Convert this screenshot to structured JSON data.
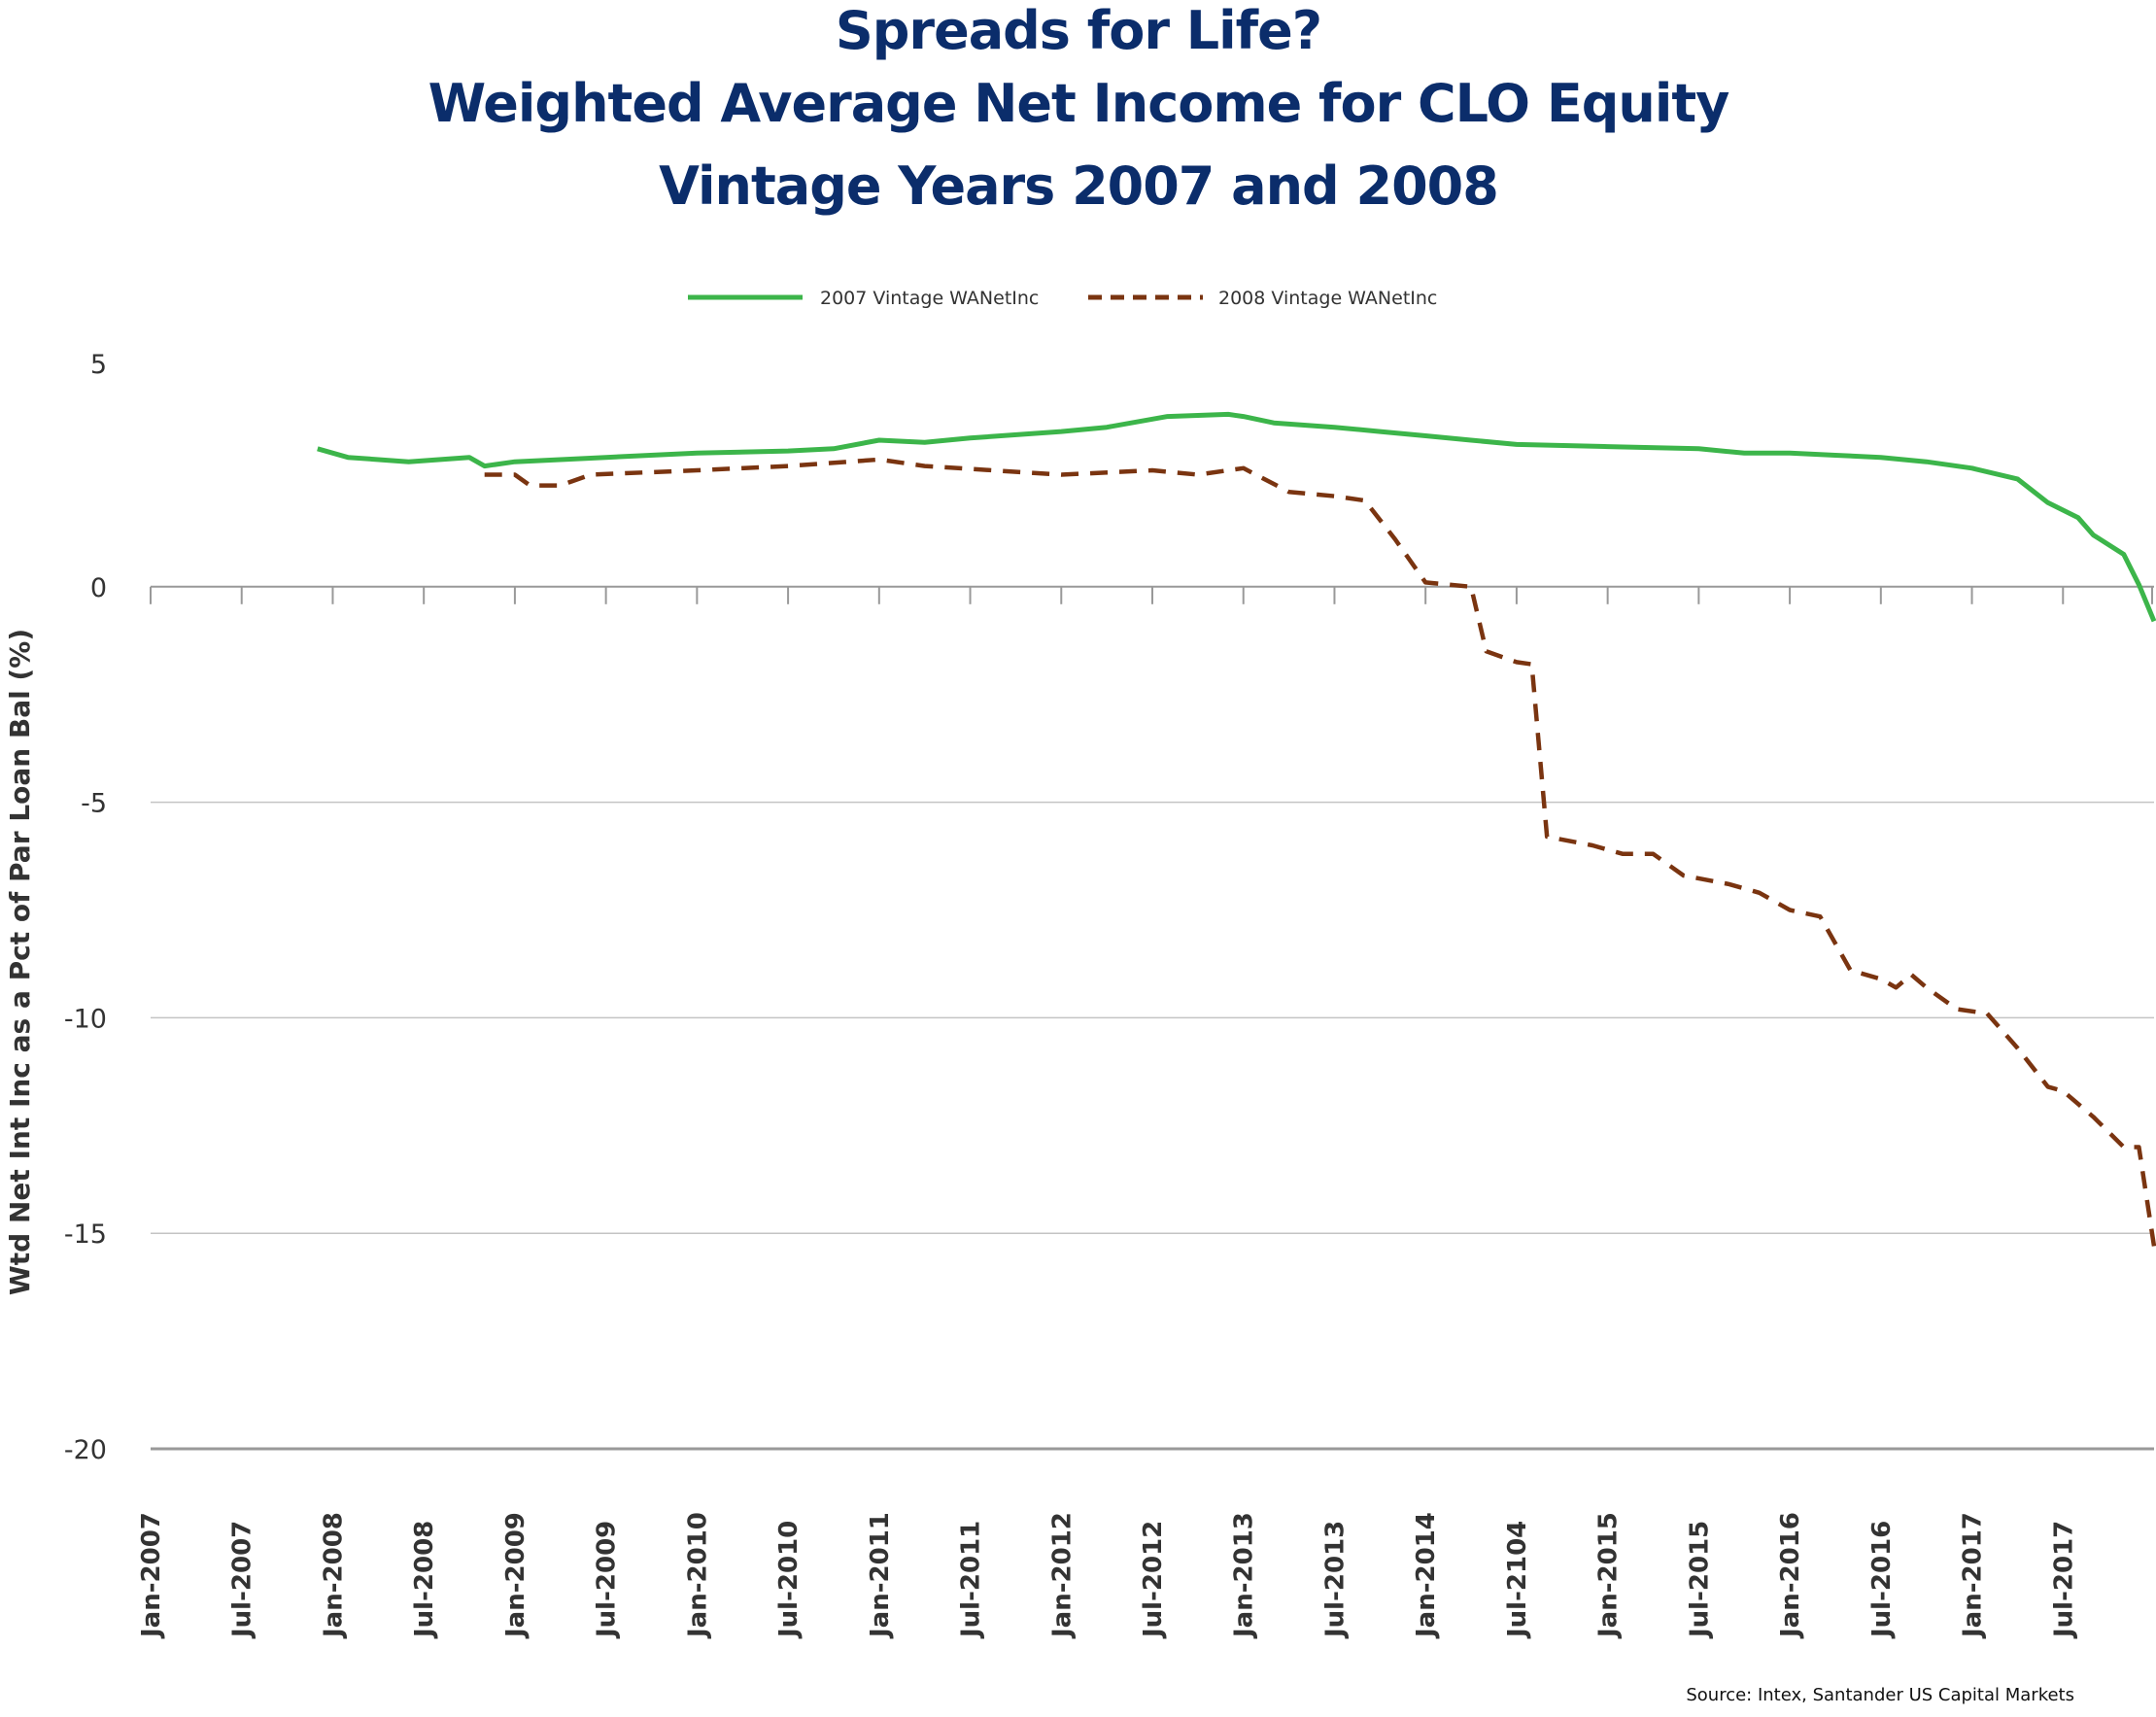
{
  "chart_data": {
    "type": "line",
    "title": [
      "Spreads for Life?",
      "Weighted Average Net Income for CLO Equity",
      "Vintage Years 2007 and 2008"
    ],
    "ylabel": "Wtd Net Int Inc as a Pct of Par Loan Bal (%)",
    "xlabel": "",
    "ylim": [
      -20,
      5
    ],
    "yticks": [
      5,
      0,
      -5,
      -10,
      -15,
      -20
    ],
    "xlim": [
      "2007-01",
      "2018-01"
    ],
    "xtick_labels": [
      "Jan-2007",
      "Jul-2007",
      "Jan-2008",
      "Jul-2008",
      "Jan-2009",
      "Jul-2009",
      "Jan-2010",
      "Jul-2010",
      "Jan-2011",
      "Jul-2011",
      "Jan-2012",
      "Jul-2012",
      "Jan-2013",
      "Jul-2013",
      "Jan-2014",
      "Jul-2104",
      "Jan-2015",
      "Jul-2015",
      "Jan-2016",
      "Jul-2016",
      "Jan-2017",
      "Jul-2017"
    ],
    "grid": "horizontal",
    "legend_position": "top",
    "source": "Source: Intex, Santander US Capital Markets",
    "series": [
      {
        "name": "2007 Vintage WANetInc",
        "color": "#3cb54a",
        "style": "solid",
        "points": [
          [
            "2007-12",
            3.2
          ],
          [
            "2008-02",
            3.0
          ],
          [
            "2008-06",
            2.9
          ],
          [
            "2008-10",
            3.0
          ],
          [
            "2008-11",
            2.8
          ],
          [
            "2009-01",
            2.9
          ],
          [
            "2009-07",
            3.0
          ],
          [
            "2010-01",
            3.1
          ],
          [
            "2010-07",
            3.15
          ],
          [
            "2010-10",
            3.2
          ],
          [
            "2011-01",
            3.4
          ],
          [
            "2011-04",
            3.35
          ],
          [
            "2011-07",
            3.45
          ],
          [
            "2012-01",
            3.6
          ],
          [
            "2012-04",
            3.7
          ],
          [
            "2012-08",
            3.95
          ],
          [
            "2012-12",
            4.0
          ],
          [
            "2013-01",
            3.95
          ],
          [
            "2013-03",
            3.8
          ],
          [
            "2013-07",
            3.7
          ],
          [
            "2013-10",
            3.6
          ],
          [
            "2014-01",
            3.5
          ],
          [
            "2014-04",
            3.4
          ],
          [
            "2014-07",
            3.3
          ],
          [
            "2015-01",
            3.25
          ],
          [
            "2015-07",
            3.2
          ],
          [
            "2015-10",
            3.1
          ],
          [
            "2016-01",
            3.1
          ],
          [
            "2016-04",
            3.05
          ],
          [
            "2016-07",
            3.0
          ],
          [
            "2016-10",
            2.9
          ],
          [
            "2017-01",
            2.75
          ],
          [
            "2017-04",
            2.5
          ],
          [
            "2017-06",
            1.95
          ],
          [
            "2017-08",
            1.6
          ],
          [
            "2017-09",
            1.2
          ],
          [
            "2017-11",
            0.75
          ],
          [
            "2017-12",
            0.05
          ],
          [
            "2018-01",
            -0.8
          ]
        ]
      },
      {
        "name": "2008 Vintage WANetInc",
        "color": "#7a3410",
        "style": "dashed",
        "points": [
          [
            "2008-11",
            2.6
          ],
          [
            "2009-01",
            2.6
          ],
          [
            "2009-02",
            2.35
          ],
          [
            "2009-04",
            2.35
          ],
          [
            "2009-06",
            2.6
          ],
          [
            "2010-01",
            2.7
          ],
          [
            "2010-07",
            2.8
          ],
          [
            "2011-01",
            2.95
          ],
          [
            "2011-04",
            2.8
          ],
          [
            "2012-01",
            2.6
          ],
          [
            "2012-07",
            2.7
          ],
          [
            "2012-10",
            2.6
          ],
          [
            "2013-01",
            2.75
          ],
          [
            "2013-04",
            2.2
          ],
          [
            "2013-07",
            2.1
          ],
          [
            "2013-09",
            2.0
          ],
          [
            "2013-11",
            1.1
          ],
          [
            "2014-01",
            0.1
          ],
          [
            "2014-04",
            0.0
          ],
          [
            "2014-05",
            -1.5
          ],
          [
            "2014-07",
            -1.75
          ],
          [
            "2014-08",
            -1.8
          ],
          [
            "2014-09",
            -5.8
          ],
          [
            "2014-12",
            -6.0
          ],
          [
            "2015-02",
            -6.2
          ],
          [
            "2015-04",
            -6.2
          ],
          [
            "2015-06",
            -6.7
          ],
          [
            "2015-09",
            -6.9
          ],
          [
            "2015-11",
            -7.1
          ],
          [
            "2016-01",
            -7.5
          ],
          [
            "2016-03",
            -7.65
          ],
          [
            "2016-05",
            -8.9
          ],
          [
            "2016-07",
            -9.1
          ],
          [
            "2016-08",
            -9.3
          ],
          [
            "2016-09",
            -9.0
          ],
          [
            "2016-10",
            -9.3
          ],
          [
            "2016-12",
            -9.8
          ],
          [
            "2017-02",
            -9.9
          ],
          [
            "2017-04",
            -10.7
          ],
          [
            "2017-06",
            -11.6
          ],
          [
            "2017-07",
            -11.7
          ],
          [
            "2017-09",
            -12.3
          ],
          [
            "2017-11",
            -13.0
          ],
          [
            "2017-12",
            -13.0
          ],
          [
            "2018-01",
            -15.3
          ]
        ]
      }
    ]
  }
}
